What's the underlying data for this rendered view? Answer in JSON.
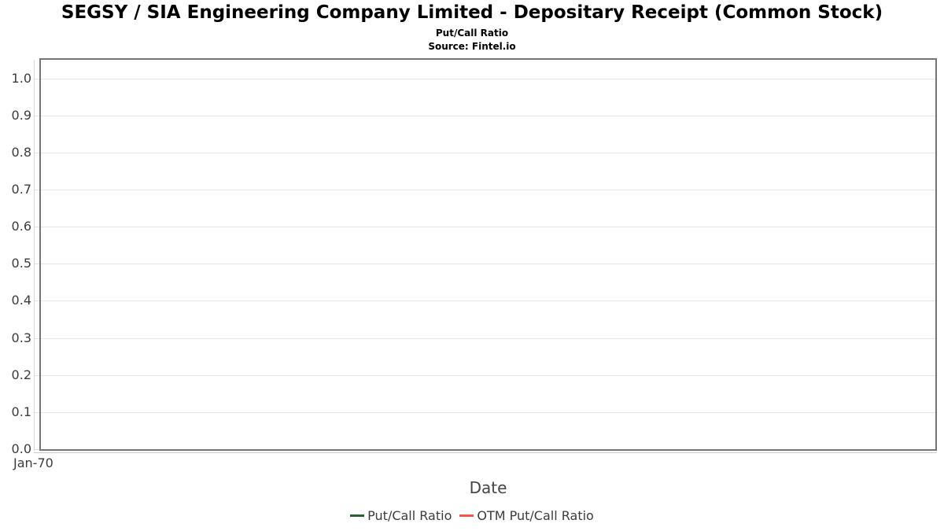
{
  "header": {
    "title": "SEGSY / SIA Engineering Company Limited - Depositary Receipt (Common Stock)",
    "subtitle": "Put/Call Ratio",
    "source": "Source: Fintel.io"
  },
  "chart_data": {
    "type": "line",
    "title": "SEGSY / SIA Engineering Company Limited - Depositary Receipt (Common Stock)",
    "subtitle": "Put/Call Ratio",
    "source": "Source: Fintel.io",
    "xlabel": "Date",
    "ylabel": "",
    "x_ticks": [
      "Jan-70"
    ],
    "y_ticks": [
      "0.0",
      "0.1",
      "0.2",
      "0.3",
      "0.4",
      "0.5",
      "0.6",
      "0.7",
      "0.8",
      "0.9",
      "1.0"
    ],
    "ylim": [
      0,
      1.05
    ],
    "grid": true,
    "legend_position": "bottom",
    "series": [
      {
        "name": "Put/Call Ratio",
        "color": "#28632d",
        "values": []
      },
      {
        "name": "OTM Put/Call Ratio",
        "color": "#f9534e",
        "values": []
      }
    ]
  },
  "colors": {
    "plot_border": "#757575",
    "gridline": "#e4e4e4",
    "axis_line": "#d4d7de",
    "tick_text": "#3b3b3b",
    "series_green": "#28632d",
    "series_red": "#f9534e"
  }
}
